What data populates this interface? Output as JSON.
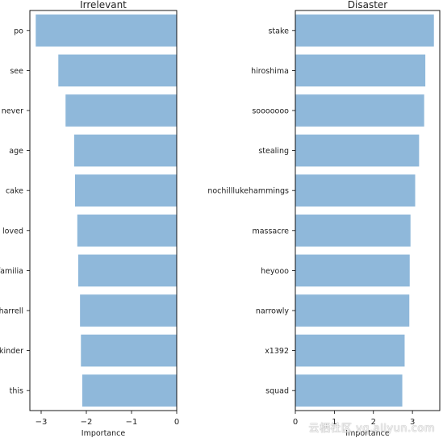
{
  "chart_data": [
    {
      "type": "bar",
      "orientation": "horizontal",
      "title": "Irrelevant",
      "xlabel": "Importance",
      "ylabel": "",
      "categories": [
        "po",
        "see",
        "never",
        "age",
        "cake",
        "loved",
        "familia",
        "harrell",
        "kinder",
        "this"
      ],
      "values": [
        -3.12,
        -2.62,
        -2.46,
        -2.27,
        -2.25,
        -2.2,
        -2.18,
        -2.14,
        -2.12,
        -2.09
      ],
      "xlim": [
        -3.25,
        0
      ],
      "xticks": [
        -3,
        -2,
        -1,
        0
      ],
      "xtick_labels": [
        "−3",
        "−2",
        "−1",
        "0"
      ],
      "bar_color": "#8fb8da",
      "grid": false
    },
    {
      "type": "bar",
      "orientation": "horizontal",
      "title": "Disaster",
      "xlabel": "Importance",
      "ylabel": "",
      "categories": [
        "stake",
        "hiroshima",
        "sooooooo",
        "stealing",
        "nochilllukehammings",
        "massacre",
        "heyooo",
        "narrowly",
        "x1392",
        "squad"
      ],
      "values": [
        3.55,
        3.33,
        3.3,
        3.17,
        3.07,
        2.95,
        2.93,
        2.92,
        2.8,
        2.74
      ],
      "xlim": [
        0,
        3.7
      ],
      "xticks": [
        0,
        1,
        2,
        3
      ],
      "xtick_labels": [
        "0",
        "1",
        "2",
        "3"
      ],
      "bar_color": "#8fb8da",
      "grid": false
    }
  ],
  "watermark": "云栖社区 yq.aliyun.com"
}
